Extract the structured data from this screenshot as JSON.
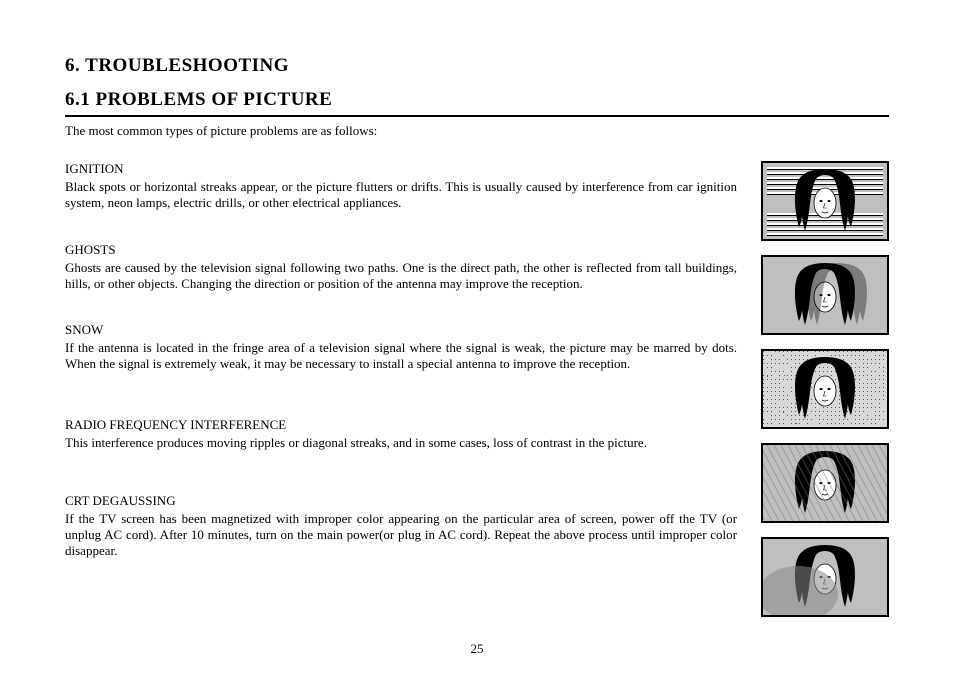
{
  "heading_main": "6.   TROUBLESHOOTING",
  "heading_sub": "6.1 PROBLEMS OF PICTURE",
  "intro": "The most common types of picture problems are as follows:",
  "problems": [
    {
      "title": "IGNITION",
      "desc": "Black spots or horizontal streaks appear, or the picture flutters or drifts. This is usually caused by interference from car ignition system, neon lamps, electric drills, or other electrical appliances."
    },
    {
      "title": "GHOSTS",
      "desc": "Ghosts are caused by the television signal following two paths. One is the direct path, the other is reflected from tall buildings, hills, or other objects. Changing the direction or position of the antenna may improve the reception."
    },
    {
      "title": "SNOW",
      "desc": "If the antenna is located in the fringe area of a television signal where the signal is weak, the picture may be marred by dots. When the signal is extremely weak, it may be necessary to install a special antenna to improve the reception."
    },
    {
      "title": "RADIO FREQUENCY INTERFERENCE",
      "desc": "This interference produces moving ripples or diagonal streaks, and in some cases, loss of contrast in the picture."
    },
    {
      "title": "CRT DEGAUSSING",
      "desc": "If the TV screen has been magnetized with improper color appearing on the particular area of screen, power off the TV (or unplug AC cord). After 10 minutes, turn on the main power(or plug in AC cord). Repeat the above process until improper color disappear."
    }
  ],
  "thumbnails": [
    {
      "name": "ignition-thumb",
      "variant": "streaks"
    },
    {
      "name": "ghosts-thumb",
      "variant": "ghost"
    },
    {
      "name": "snow-thumb",
      "variant": "snow"
    },
    {
      "name": "rfi-thumb",
      "variant": "ripple"
    },
    {
      "name": "degauss-thumb",
      "variant": "tint"
    }
  ],
  "page_number": "25",
  "colors": {
    "thumb_bg": "#bfbfbf",
    "thumb_border": "#000000",
    "text": "#000000"
  },
  "spacing": {
    "problem_gaps": [
      30,
      30,
      44,
      42,
      0
    ]
  }
}
